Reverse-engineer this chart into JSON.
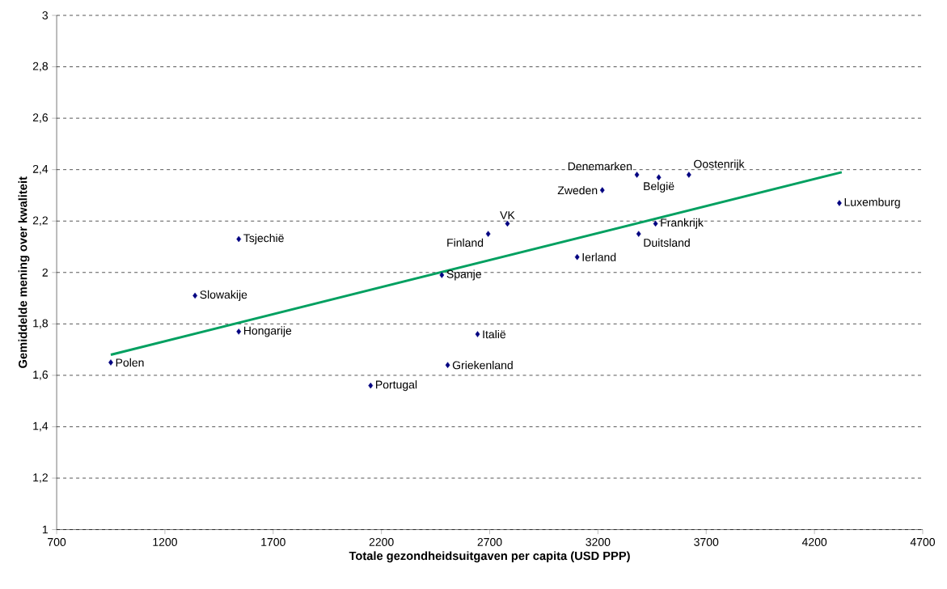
{
  "chart_data": {
    "type": "scatter",
    "xlabel": "Totale gezondheidsuitgaven per capita (USD PPP)",
    "ylabel": "Gemiddelde mening over kwaliteit",
    "xlim": [
      700,
      4700
    ],
    "ylim": [
      1,
      3
    ],
    "xticks": [
      700,
      1200,
      1700,
      2200,
      2700,
      3200,
      3700,
      4200,
      4700
    ],
    "yticks": [
      1,
      {
        "value": 1.2,
        "label": "1,2"
      },
      {
        "value": 1.4,
        "label": "1,4"
      },
      {
        "value": 1.6,
        "label": "1,6"
      },
      {
        "value": 1.8,
        "label": "1,8"
      },
      2,
      {
        "value": 2.2,
        "label": "2,2"
      },
      {
        "value": 2.4,
        "label": "2,4"
      },
      {
        "value": 2.6,
        "label": "2,6"
      },
      {
        "value": 2.8,
        "label": "2,8"
      },
      3
    ],
    "grid": "y",
    "series": [
      {
        "marker": "diamond",
        "color": "#000080",
        "x": [
          950,
          1541,
          1339,
          1541,
          2150,
          2479,
          2693,
          2782,
          2644,
          2506,
          3104,
          3220,
          3380,
          3481,
          3620,
          3466,
          3388,
          4315
        ],
        "values": [
          1.65,
          2.13,
          1.91,
          1.77,
          1.56,
          1.99,
          2.15,
          2.19,
          1.76,
          1.64,
          2.06,
          2.32,
          2.38,
          2.37,
          2.38,
          2.19,
          2.15,
          2.27
        ]
      },
      {
        "type": "line",
        "color": "#00a060",
        "x": [
          950,
          4326
        ],
        "values": [
          1.68,
          2.39
        ]
      }
    ],
    "annotations": [
      {
        "text": "Polen",
        "x": 950,
        "y": 1.65
      },
      {
        "text": "Tsjechië",
        "x": 1541,
        "y": 2.13
      },
      {
        "text": "Slowakije",
        "x": 1339,
        "y": 1.91
      },
      {
        "text": "Hongarije",
        "x": 1541,
        "y": 1.77
      },
      {
        "text": "Portugal",
        "x": 2150,
        "y": 1.56
      },
      {
        "text": "Spanje",
        "x": 2479,
        "y": 1.99
      },
      {
        "text": "Finland",
        "x": 2693,
        "y": 2.15
      },
      {
        "text": "VK",
        "x": 2782,
        "y": 2.19
      },
      {
        "text": "Italië",
        "x": 2644,
        "y": 1.76
      },
      {
        "text": "Griekenland",
        "x": 2506,
        "y": 1.64
      },
      {
        "text": "Ierland",
        "x": 3104,
        "y": 2.06
      },
      {
        "text": "Zweden",
        "x": 3220,
        "y": 2.32
      },
      {
        "text": "Denemarken",
        "x": 3380,
        "y": 2.38
      },
      {
        "text": "België",
        "x": 3481,
        "y": 2.37
      },
      {
        "text": "Oostenrijk",
        "x": 3620,
        "y": 2.38
      },
      {
        "text": "Frankrijk",
        "x": 3466,
        "y": 2.19
      },
      {
        "text": "Duitsland",
        "x": 3388,
        "y": 2.15
      },
      {
        "text": "Luxemburg",
        "x": 4315,
        "y": 2.27
      }
    ]
  }
}
